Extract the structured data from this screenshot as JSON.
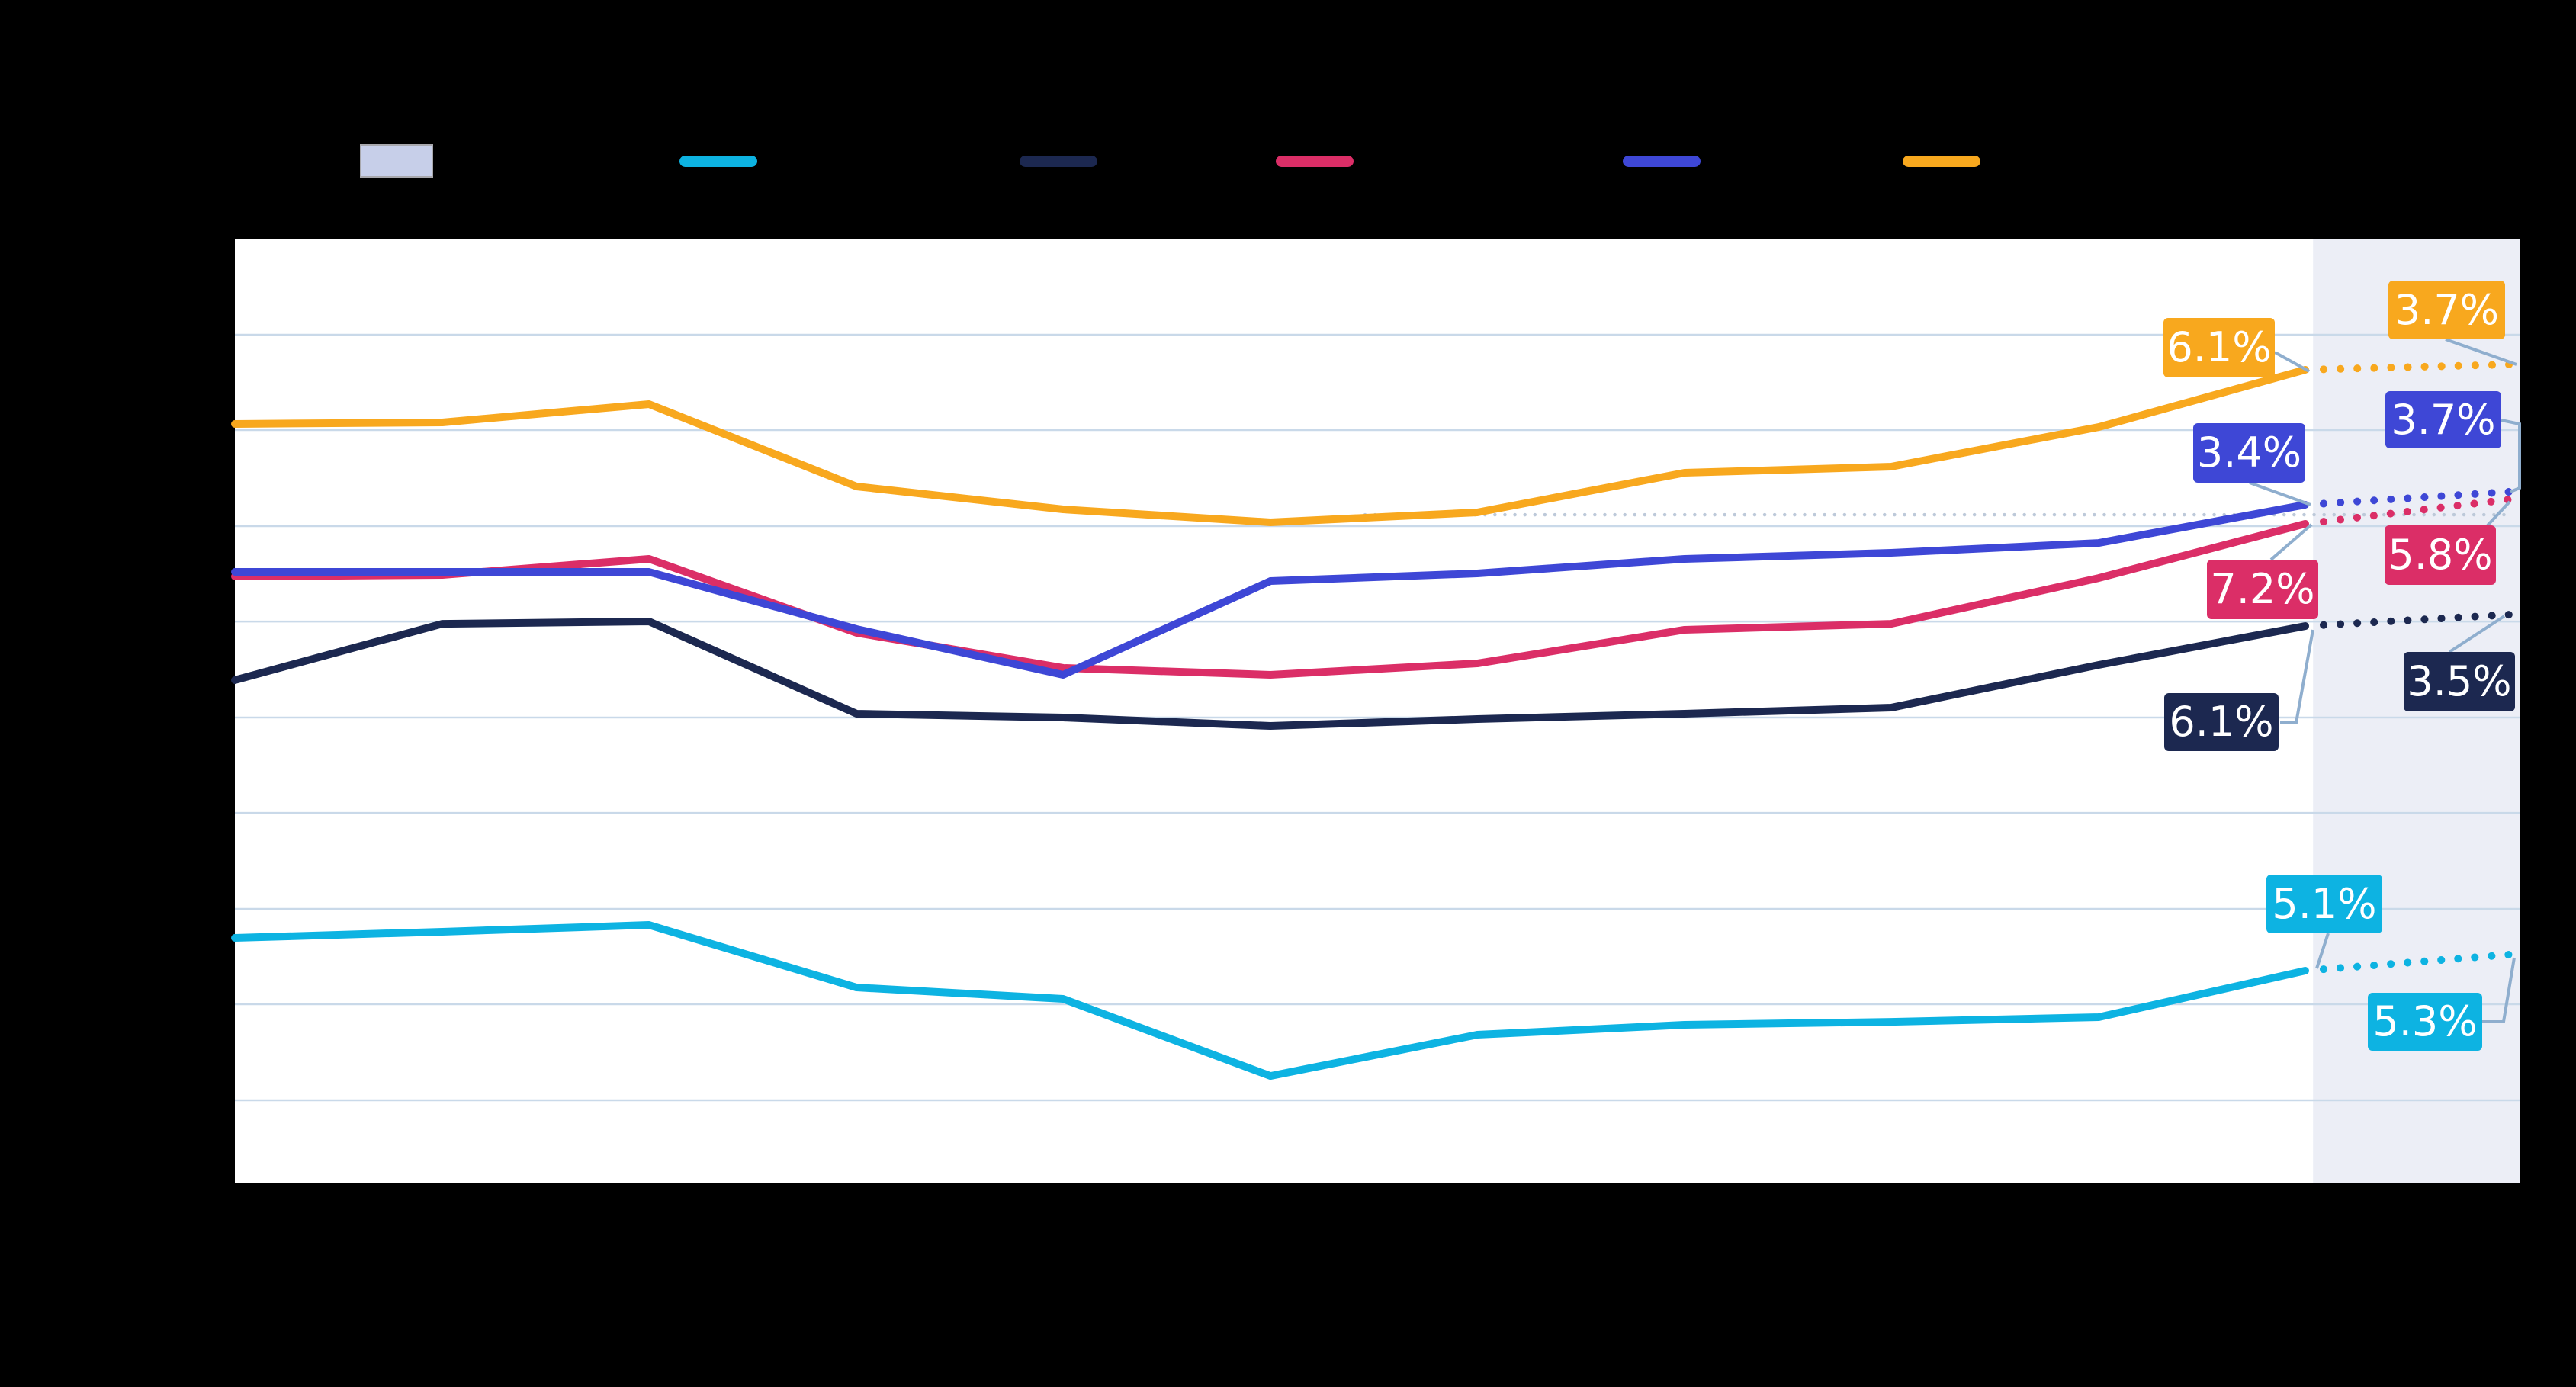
{
  "legibility_note": "Chart title, axis tick labels and legend item texts are rendered in near-black on a black background and are not legible in the screenshot; only swatches, plot, lines and value callouts are visible.",
  "palette": {
    "page_background": "#000000",
    "plot_background": "#ffffff",
    "forecast_band": "#ECEEF6",
    "forecast_band_swatch": "#C7CFE9",
    "gridline": "#C9D9E9",
    "leader_line": "#8FAECE",
    "reference_dots": "#BDC9D9",
    "label_text": "#ffffff",
    "cyan": "#0DB3E2",
    "navy": "#1C2850",
    "pink": "#DB2E67",
    "indigo": "#3E47D6",
    "orange": "#F8A81E"
  },
  "legend": {
    "items": [
      {
        "id": "forecast-band",
        "swatch": "rect",
        "color": "#C7CFE9",
        "label": ""
      },
      {
        "id": "series-cyan",
        "swatch": "line",
        "color": "#0DB3E2",
        "label": ""
      },
      {
        "id": "series-navy",
        "swatch": "line",
        "color": "#1C2850",
        "label": ""
      },
      {
        "id": "series-pink",
        "swatch": "line",
        "color": "#DB2E67",
        "label": ""
      },
      {
        "id": "series-indigo",
        "swatch": "line",
        "color": "#3E47D6",
        "label": ""
      },
      {
        "id": "series-orange",
        "swatch": "line",
        "color": "#F8A81E",
        "label": ""
      }
    ]
  },
  "chart_data": {
    "type": "line",
    "x_axis_labels_visible": false,
    "y_axis_labels_visible": false,
    "n_actual_points": 11,
    "forecast_band": {
      "from_fx": 0.9093,
      "to_fx": 1.0
    },
    "gridlines_fy": [
      0.1011,
      0.2021,
      0.304,
      0.4051,
      0.5069,
      0.608,
      0.7098,
      0.8108,
      0.9127
    ],
    "x_points_fx": [
      0.0,
      0.0908,
      0.1812,
      0.272,
      0.3624,
      0.4531,
      0.5436,
      0.6343,
      0.7247,
      0.8155,
      0.9059
    ],
    "forecast_fx": 0.995,
    "reference_dotted": {
      "fy": 0.2919,
      "from_fx": 0.4945,
      "to_fx": 0.997
    },
    "series": [
      {
        "id": "cyan",
        "color_key": "cyan",
        "points_fy": [
          0.7405,
          0.734,
          0.7268,
          0.7931,
          0.8052,
          0.8869,
          0.8432,
          0.8327,
          0.8295,
          0.8246,
          0.7753
        ],
        "forecast_fy": 0.7583,
        "last_actual_label": "5.1%",
        "forecast_label": "5.3%"
      },
      {
        "id": "navy",
        "color_key": "navy",
        "points_fy": [
          0.4672,
          0.4075,
          0.405,
          0.5028,
          0.5069,
          0.5158,
          0.5085,
          0.5028,
          0.4964,
          0.4511,
          0.4099
        ],
        "forecast_fy": 0.3978,
        "last_actual_label": "6.1%",
        "forecast_label": "3.5%"
      },
      {
        "id": "pink",
        "color_key": "pink",
        "points_fy": [
          0.3573,
          0.3557,
          0.3387,
          0.4171,
          0.4543,
          0.4616,
          0.4495,
          0.4139,
          0.4075,
          0.359,
          0.3015
        ],
        "forecast_fy": 0.2757,
        "last_actual_label": "7.2%",
        "forecast_label": "5.8%"
      },
      {
        "id": "indigo",
        "color_key": "indigo",
        "points_fy": [
          0.3525,
          0.3525,
          0.3525,
          0.4131,
          0.4616,
          0.3622,
          0.3541,
          0.3387,
          0.3323,
          0.3218,
          0.2813
        ],
        "forecast_fy": 0.2676,
        "last_actual_label": "3.4%",
        "forecast_label": "3.7%"
      },
      {
        "id": "orange",
        "color_key": "orange",
        "points_fy": [
          0.1956,
          0.194,
          0.1746,
          0.2619,
          0.2862,
          0.2999,
          0.2894,
          0.2474,
          0.2409,
          0.1989,
          0.1382
        ],
        "forecast_fy": 0.1326,
        "last_actual_label": "6.1%",
        "forecast_label": "3.7%"
      }
    ]
  },
  "value_labels": [
    {
      "series": "orange",
      "kind": "last-actual",
      "text": "6.1%"
    },
    {
      "series": "orange",
      "kind": "forecast",
      "text": "3.7%"
    },
    {
      "series": "indigo",
      "kind": "last-actual",
      "text": "3.4%"
    },
    {
      "series": "indigo",
      "kind": "forecast",
      "text": "3.7%"
    },
    {
      "series": "pink",
      "kind": "last-actual",
      "text": "7.2%"
    },
    {
      "series": "pink",
      "kind": "forecast",
      "text": "5.8%"
    },
    {
      "series": "navy",
      "kind": "last-actual",
      "text": "6.1%"
    },
    {
      "series": "navy",
      "kind": "forecast",
      "text": "3.5%"
    },
    {
      "series": "cyan",
      "kind": "last-actual",
      "text": "5.1%"
    },
    {
      "series": "cyan",
      "kind": "forecast",
      "text": "5.3%"
    }
  ]
}
